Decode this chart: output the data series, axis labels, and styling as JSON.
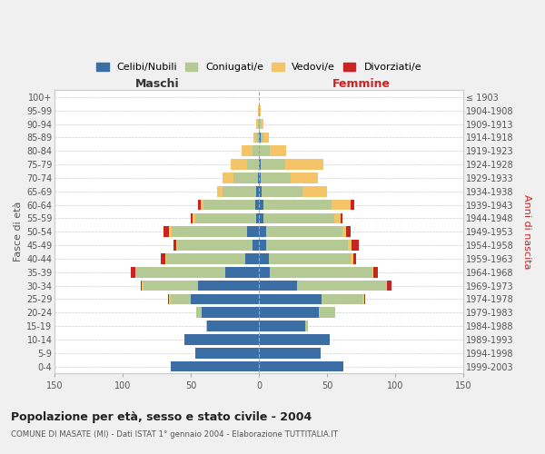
{
  "age_groups": [
    "0-4",
    "5-9",
    "10-14",
    "15-19",
    "20-24",
    "25-29",
    "30-34",
    "35-39",
    "40-44",
    "45-49",
    "50-54",
    "55-59",
    "60-64",
    "65-69",
    "70-74",
    "75-79",
    "80-84",
    "85-89",
    "90-94",
    "95-99",
    "100+"
  ],
  "birth_years": [
    "1999-2003",
    "1994-1998",
    "1989-1993",
    "1984-1988",
    "1979-1983",
    "1974-1978",
    "1969-1973",
    "1964-1968",
    "1959-1963",
    "1954-1958",
    "1949-1953",
    "1944-1948",
    "1939-1943",
    "1934-1938",
    "1929-1933",
    "1924-1928",
    "1919-1923",
    "1914-1918",
    "1909-1913",
    "1904-1908",
    "≤ 1903"
  ],
  "males_celibi": [
    65,
    47,
    55,
    38,
    42,
    50,
    45,
    25,
    10,
    5,
    9,
    2,
    3,
    2,
    1,
    0,
    0,
    0,
    0,
    0,
    0
  ],
  "males_coniugati": [
    0,
    0,
    0,
    1,
    4,
    15,
    40,
    65,
    58,
    55,
    55,
    45,
    38,
    25,
    18,
    9,
    5,
    2,
    1,
    0,
    0
  ],
  "males_vedovi": [
    0,
    0,
    0,
    0,
    0,
    1,
    1,
    1,
    1,
    1,
    2,
    2,
    2,
    4,
    8,
    12,
    8,
    2,
    1,
    1,
    0
  ],
  "males_divorziati": [
    0,
    0,
    0,
    0,
    0,
    1,
    1,
    3,
    3,
    2,
    4,
    1,
    2,
    0,
    0,
    0,
    0,
    0,
    0,
    0,
    0
  ],
  "females_nubili": [
    62,
    45,
    52,
    34,
    44,
    46,
    28,
    8,
    7,
    5,
    5,
    3,
    3,
    2,
    1,
    1,
    0,
    1,
    0,
    0,
    0
  ],
  "females_coniugate": [
    0,
    0,
    0,
    2,
    12,
    30,
    65,
    75,
    60,
    60,
    56,
    52,
    50,
    30,
    22,
    18,
    8,
    2,
    1,
    0,
    0
  ],
  "females_vedove": [
    0,
    0,
    0,
    0,
    0,
    1,
    1,
    1,
    2,
    3,
    3,
    5,
    14,
    18,
    20,
    28,
    12,
    4,
    2,
    1,
    0
  ],
  "females_divorziate": [
    0,
    0,
    0,
    0,
    0,
    1,
    3,
    3,
    2,
    5,
    3,
    1,
    3,
    0,
    0,
    0,
    0,
    0,
    0,
    0,
    0
  ],
  "colors_celibi": "#3a6ea5",
  "colors_coniugati": "#b5c994",
  "colors_vedovi": "#f5c469",
  "colors_divorziati": "#cc2222",
  "legend_labels": [
    "Celibi/Nubili",
    "Coniugati/e",
    "Vedovi/e",
    "Divorziati/e"
  ],
  "title": "Popolazione per età, sesso e stato civile - 2004",
  "subtitle": "COMUNE DI MASATE (MI) - Dati ISTAT 1° gennaio 2004 - Elaborazione TUTTITALIA.IT",
  "label_maschi": "Maschi",
  "label_femmine": "Femmine",
  "ylabel_left": "Fasce di età",
  "ylabel_right": "Anni di nascita",
  "xlim": 150,
  "bg_color": "#f0f0f0",
  "plot_bg": "#ffffff",
  "grid_color": "#cccccc"
}
